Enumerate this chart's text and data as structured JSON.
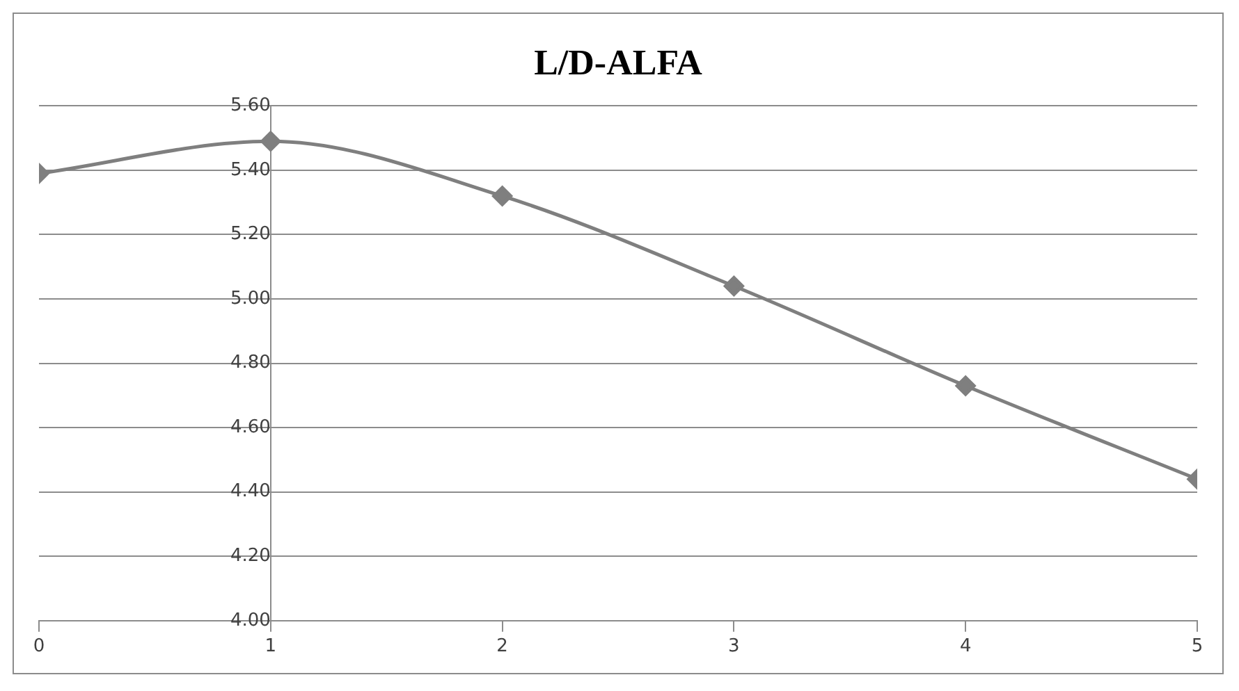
{
  "chart_data": {
    "type": "line",
    "title": "L/D-ALFA",
    "x": [
      0,
      1,
      2,
      3,
      4,
      5
    ],
    "series": [
      {
        "color": "#7f7f7f",
        "values": [
          5.39,
          5.49,
          5.32,
          5.04,
          4.73,
          4.44
        ]
      }
    ],
    "xlim": [
      0,
      5
    ],
    "xticks": [
      0,
      1,
      2,
      3,
      4,
      5
    ],
    "ylim": [
      4.0,
      5.6
    ],
    "yticks": [
      {
        "value": 4.0,
        "label": "4.00"
      },
      {
        "value": 4.2,
        "label": "4.20"
      },
      {
        "value": 4.4,
        "label": "4.40"
      },
      {
        "value": 4.6,
        "label": "4.60"
      },
      {
        "value": 4.8,
        "label": "4.80"
      },
      {
        "value": 5.0,
        "label": "5.00"
      },
      {
        "value": 5.2,
        "label": "5.20"
      },
      {
        "value": 5.4,
        "label": "5.40"
      },
      {
        "value": 5.6,
        "label": "5.60"
      }
    ],
    "grid": "y",
    "legend": false,
    "marker": "diamond",
    "line_style": "solid"
  }
}
